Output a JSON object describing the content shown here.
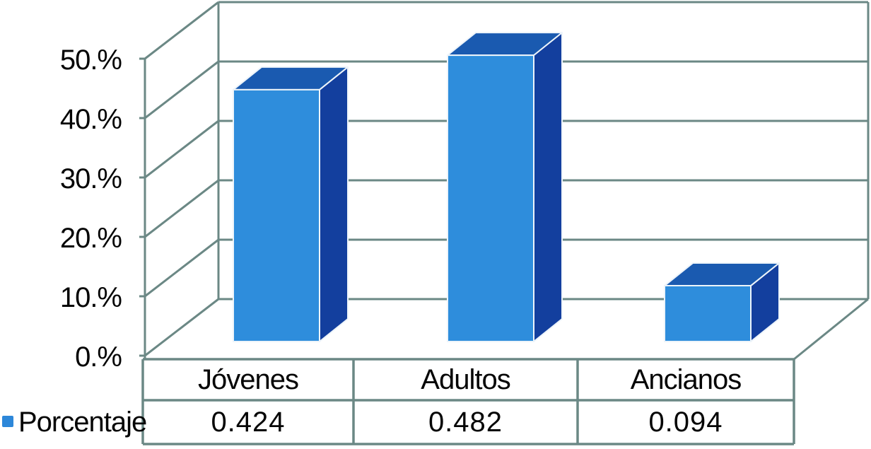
{
  "chart_data": {
    "type": "bar",
    "projection": "3d",
    "title": "",
    "xlabel": "",
    "ylabel": "",
    "categories": [
      "Jóvenes",
      "Adultos",
      "Ancianos"
    ],
    "series": [
      {
        "name": "Porcentaje",
        "values": [
          0.424,
          0.482,
          0.094
        ]
      }
    ],
    "value_labels": [
      "0.424",
      "0.482",
      "0.094"
    ],
    "y_tick_labels": [
      "0.%",
      "10.%",
      "20.%",
      "30.%",
      "40.%",
      "50.%"
    ],
    "y_tick_pcts": [
      0,
      10,
      20,
      30,
      40,
      50
    ],
    "ylim_pct": [
      0,
      50
    ],
    "grid": true,
    "legend": {
      "label": "Porcentaje",
      "position": "bottom-left",
      "marker": "blue-square"
    },
    "data_table_below_axis": true,
    "colors": {
      "background": "#FFFFFF",
      "frame": "#6B8885",
      "bar_front": "#2E8DDC",
      "bar_top": "#1A5AB0",
      "bar_side": "#133F9E",
      "bar_edge": "#EDF4FA",
      "legend_marker": "#2D87D9",
      "text": "#050505"
    }
  }
}
